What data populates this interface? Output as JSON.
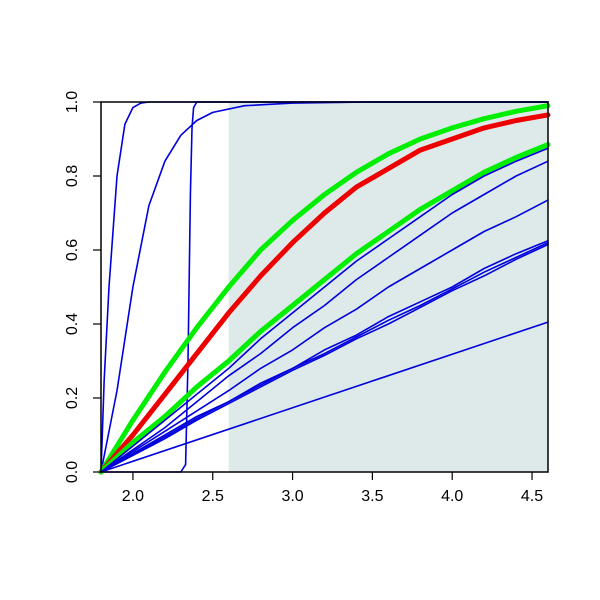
{
  "chart_data": {
    "type": "line",
    "title": "",
    "xlabel": "",
    "ylabel": "",
    "xlim": [
      1.8,
      4.6
    ],
    "ylim": [
      0,
      1
    ],
    "grid": false,
    "legend": "none",
    "x_ticks": [
      {
        "value": 2.0,
        "label": "2.0"
      },
      {
        "value": 2.5,
        "label": "2.5"
      },
      {
        "value": 3.0,
        "label": "3.0"
      },
      {
        "value": 3.5,
        "label": "3.5"
      },
      {
        "value": 4.0,
        "label": "4.0"
      },
      {
        "value": 4.5,
        "label": "4.5"
      }
    ],
    "y_ticks": [
      {
        "value": 0.0,
        "label": "0.0"
      },
      {
        "value": 0.2,
        "label": "0.2"
      },
      {
        "value": 0.4,
        "label": "0.4"
      },
      {
        "value": 0.6,
        "label": "0.6"
      },
      {
        "value": 0.8,
        "label": "0.8"
      },
      {
        "value": 1.0,
        "label": "1.0"
      }
    ],
    "shaded_region": {
      "x_from": 2.6,
      "x_to": 4.6,
      "color": "#deeaea"
    },
    "series": [
      {
        "color": "#0000dd",
        "weight": "thin",
        "x": [
          1.8,
          1.82,
          1.85,
          1.9,
          1.95,
          2.0,
          2.05,
          2.1,
          2.2,
          4.6
        ],
        "y": [
          0,
          0.25,
          0.5,
          0.8,
          0.94,
          0.985,
          0.997,
          1.0,
          1.0,
          1.0
        ]
      },
      {
        "color": "#0000dd",
        "weight": "thin",
        "x": [
          1.8,
          1.9,
          2.0,
          2.1,
          2.2,
          2.3,
          2.4,
          2.5,
          2.7,
          3.0,
          3.5,
          4.6
        ],
        "y": [
          0,
          0.22,
          0.5,
          0.72,
          0.84,
          0.91,
          0.95,
          0.972,
          0.99,
          0.997,
          1.0,
          1.0
        ]
      },
      {
        "color": "#0000dd",
        "weight": "thin",
        "x": [
          1.8,
          2.3,
          2.33,
          2.345,
          2.36,
          2.37,
          2.38,
          2.4,
          2.5,
          4.6
        ],
        "y": [
          0,
          0,
          0.02,
          0.3,
          0.75,
          0.93,
          0.985,
          1.0,
          1.0,
          1.0
        ]
      },
      {
        "color": "#00ee00",
        "weight": "thick",
        "x": [
          1.8,
          2.0,
          2.2,
          2.4,
          2.6,
          2.8,
          3.0,
          3.2,
          3.4,
          3.6,
          3.8,
          4.0,
          4.2,
          4.4,
          4.6
        ],
        "y": [
          0,
          0.14,
          0.27,
          0.39,
          0.5,
          0.6,
          0.68,
          0.75,
          0.81,
          0.86,
          0.9,
          0.93,
          0.955,
          0.975,
          0.99
        ]
      },
      {
        "color": "#ee0000",
        "weight": "thick",
        "x": [
          1.8,
          2.0,
          2.2,
          2.4,
          2.6,
          2.8,
          3.0,
          3.2,
          3.4,
          3.6,
          3.8,
          4.0,
          4.2,
          4.4,
          4.6
        ],
        "y": [
          0,
          0.1,
          0.21,
          0.32,
          0.43,
          0.53,
          0.62,
          0.7,
          0.77,
          0.82,
          0.87,
          0.9,
          0.93,
          0.95,
          0.965
        ]
      },
      {
        "color": "#00ee00",
        "weight": "thick",
        "x": [
          1.8,
          2.0,
          2.2,
          2.4,
          2.6,
          2.8,
          3.0,
          3.2,
          3.4,
          3.6,
          3.8,
          4.0,
          4.2,
          4.4,
          4.6
        ],
        "y": [
          0,
          0.08,
          0.15,
          0.23,
          0.3,
          0.38,
          0.45,
          0.52,
          0.59,
          0.65,
          0.71,
          0.76,
          0.81,
          0.85,
          0.885
        ]
      },
      {
        "color": "#0000dd",
        "weight": "thin",
        "x": [
          1.8,
          2.0,
          2.2,
          2.4,
          2.6,
          2.8,
          3.0,
          3.2,
          3.4,
          3.6,
          3.8,
          4.0,
          4.2,
          4.4,
          4.6
        ],
        "y": [
          0,
          0.07,
          0.14,
          0.21,
          0.28,
          0.36,
          0.43,
          0.5,
          0.57,
          0.63,
          0.69,
          0.75,
          0.8,
          0.84,
          0.875
        ]
      },
      {
        "color": "#0000dd",
        "weight": "thin",
        "x": [
          1.8,
          2.0,
          2.2,
          2.4,
          2.6,
          2.8,
          3.0,
          3.2,
          3.4,
          3.6,
          3.8,
          4.0,
          4.2,
          4.4,
          4.6
        ],
        "y": [
          0,
          0.06,
          0.12,
          0.19,
          0.26,
          0.32,
          0.39,
          0.45,
          0.52,
          0.58,
          0.64,
          0.7,
          0.75,
          0.8,
          0.84
        ]
      },
      {
        "color": "#0000dd",
        "weight": "thin",
        "x": [
          1.8,
          2.0,
          2.2,
          2.4,
          2.6,
          2.8,
          3.0,
          3.2,
          3.4,
          3.6,
          3.8,
          4.0,
          4.2,
          4.4,
          4.6
        ],
        "y": [
          0,
          0.055,
          0.11,
          0.165,
          0.22,
          0.28,
          0.33,
          0.39,
          0.44,
          0.5,
          0.55,
          0.6,
          0.65,
          0.69,
          0.735
        ]
      },
      {
        "color": "#0000dd",
        "weight": "thin",
        "x": [
          1.8,
          2.0,
          2.2,
          2.4,
          2.6,
          2.8,
          3.0,
          3.2,
          3.4,
          3.6,
          3.8,
          4.0,
          4.2,
          4.4,
          4.6
        ],
        "y": [
          0,
          0.05,
          0.1,
          0.15,
          0.19,
          0.24,
          0.28,
          0.33,
          0.37,
          0.42,
          0.46,
          0.5,
          0.55,
          0.59,
          0.625
        ]
      },
      {
        "color": "#0000dd",
        "weight": "thin",
        "x": [
          1.8,
          2.0,
          2.2,
          2.4,
          2.6,
          2.8,
          3.0,
          3.2,
          3.4,
          3.6,
          3.8,
          4.0,
          4.2,
          4.4,
          4.6
        ],
        "y": [
          0,
          0.048,
          0.095,
          0.145,
          0.19,
          0.235,
          0.28,
          0.32,
          0.365,
          0.41,
          0.45,
          0.495,
          0.54,
          0.58,
          0.62
        ]
      },
      {
        "color": "#0000dd",
        "weight": "thin",
        "x": [
          1.8,
          2.0,
          2.2,
          2.4,
          2.6,
          2.8,
          3.0,
          3.2,
          3.4,
          3.6,
          3.8,
          4.0,
          4.2,
          4.4,
          4.6
        ],
        "y": [
          0,
          0.045,
          0.09,
          0.14,
          0.185,
          0.23,
          0.275,
          0.315,
          0.36,
          0.4,
          0.445,
          0.49,
          0.53,
          0.575,
          0.615
        ]
      },
      {
        "color": "#0000dd",
        "weight": "thin",
        "x": [
          1.8,
          4.6
        ],
        "y": [
          0,
          0.405
        ]
      }
    ]
  }
}
